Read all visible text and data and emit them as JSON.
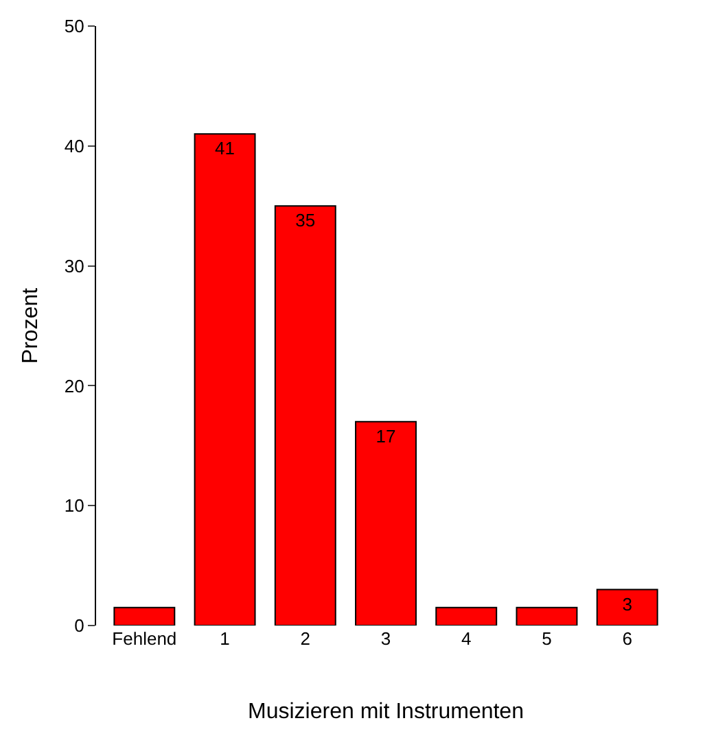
{
  "chart_data": {
    "type": "bar",
    "xlabel": "Musizieren mit Instrumenten",
    "ylabel": "Prozent",
    "categories": [
      "Fehlend",
      "1",
      "2",
      "3",
      "4",
      "5",
      "6"
    ],
    "values": [
      1.5,
      41,
      35,
      17,
      1.5,
      1.5,
      3
    ],
    "value_labels": [
      null,
      "41",
      "35",
      "17",
      null,
      null,
      "3"
    ],
    "color": "#ff0000",
    "ylim": [
      0,
      50
    ],
    "yticks": [
      0,
      10,
      20,
      30,
      40,
      50
    ]
  }
}
